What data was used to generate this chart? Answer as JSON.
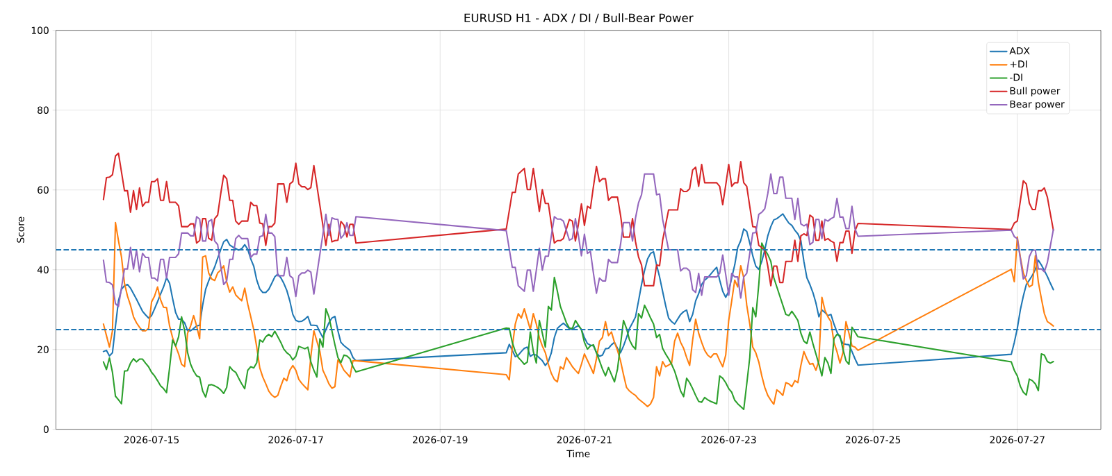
{
  "chart_data": {
    "type": "line",
    "title": "EURUSD H1 - ADX / DI / Bull-Bear Power",
    "xlabel": "Time",
    "ylabel": "Score",
    "x": [
      "2026-07-14T08:00",
      "2026-07-14T09:00",
      "2026-07-14T10:00",
      "2026-07-14T11:00",
      "2026-07-14T12:00",
      "2026-07-14T13:00",
      "2026-07-14T14:00",
      "2026-07-14T15:00",
      "2026-07-14T16:00",
      "2026-07-14T17:00",
      "2026-07-14T18:00",
      "2026-07-14T19:00",
      "2026-07-14T20:00",
      "2026-07-14T21:00",
      "2026-07-14T22:00",
      "2026-07-14T23:00",
      "2026-07-15T00:00",
      "2026-07-15T01:00",
      "2026-07-15T02:00",
      "2026-07-15T03:00",
      "2026-07-15T04:00",
      "2026-07-15T05:00",
      "2026-07-15T06:00",
      "2026-07-15T07:00",
      "2026-07-15T08:00",
      "2026-07-15T09:00",
      "2026-07-15T10:00",
      "2026-07-15T11:00",
      "2026-07-15T12:00",
      "2026-07-15T13:00",
      "2026-07-15T14:00",
      "2026-07-15T15:00",
      "2026-07-15T16:00",
      "2026-07-15T17:00",
      "2026-07-15T18:00",
      "2026-07-15T19:00",
      "2026-07-15T20:00",
      "2026-07-15T21:00",
      "2026-07-15T22:00",
      "2026-07-15T23:00",
      "2026-07-16T00:00",
      "2026-07-16T01:00",
      "2026-07-16T02:00",
      "2026-07-16T03:00",
      "2026-07-16T04:00",
      "2026-07-16T05:00",
      "2026-07-16T06:00",
      "2026-07-16T07:00",
      "2026-07-16T08:00",
      "2026-07-16T09:00",
      "2026-07-16T10:00",
      "2026-07-16T11:00",
      "2026-07-16T12:00",
      "2026-07-16T13:00",
      "2026-07-16T14:00",
      "2026-07-16T15:00",
      "2026-07-16T16:00",
      "2026-07-16T17:00",
      "2026-07-16T18:00",
      "2026-07-16T19:00",
      "2026-07-16T20:00",
      "2026-07-16T21:00",
      "2026-07-16T22:00",
      "2026-07-16T23:00",
      "2026-07-17T00:00",
      "2026-07-17T01:00",
      "2026-07-17T02:00",
      "2026-07-17T03:00",
      "2026-07-17T04:00",
      "2026-07-17T05:00",
      "2026-07-17T06:00",
      "2026-07-17T07:00",
      "2026-07-17T08:00",
      "2026-07-17T09:00",
      "2026-07-17T10:00",
      "2026-07-17T11:00",
      "2026-07-17T12:00",
      "2026-07-17T13:00",
      "2026-07-17T14:00",
      "2026-07-17T15:00",
      "2026-07-17T16:00",
      "2026-07-17T17:00",
      "2026-07-17T18:00",
      "2026-07-17T19:00",
      "2026-07-17T20:00",
      "2026-07-19T22:00",
      "2026-07-19T23:00",
      "2026-07-20T00:00",
      "2026-07-20T01:00",
      "2026-07-20T02:00",
      "2026-07-20T03:00",
      "2026-07-20T04:00",
      "2026-07-20T05:00",
      "2026-07-20T06:00",
      "2026-07-20T07:00",
      "2026-07-20T08:00",
      "2026-07-20T09:00",
      "2026-07-20T10:00",
      "2026-07-20T11:00",
      "2026-07-20T12:00",
      "2026-07-20T13:00",
      "2026-07-20T14:00",
      "2026-07-20T15:00",
      "2026-07-20T16:00",
      "2026-07-20T17:00",
      "2026-07-20T18:00",
      "2026-07-20T19:00",
      "2026-07-20T20:00",
      "2026-07-20T21:00",
      "2026-07-20T22:00",
      "2026-07-20T23:00",
      "2026-07-21T00:00",
      "2026-07-21T01:00",
      "2026-07-21T02:00",
      "2026-07-21T03:00",
      "2026-07-21T04:00",
      "2026-07-21T05:00",
      "2026-07-21T06:00",
      "2026-07-21T07:00",
      "2026-07-21T08:00",
      "2026-07-21T09:00",
      "2026-07-21T10:00",
      "2026-07-21T11:00",
      "2026-07-21T12:00",
      "2026-07-21T13:00",
      "2026-07-21T14:00",
      "2026-07-21T15:00",
      "2026-07-21T16:00",
      "2026-07-21T17:00",
      "2026-07-21T18:00",
      "2026-07-21T19:00",
      "2026-07-21T20:00",
      "2026-07-21T21:00",
      "2026-07-21T22:00",
      "2026-07-21T23:00",
      "2026-07-22T00:00",
      "2026-07-22T01:00",
      "2026-07-22T02:00",
      "2026-07-22T03:00",
      "2026-07-22T04:00",
      "2026-07-22T05:00",
      "2026-07-22T06:00",
      "2026-07-22T07:00",
      "2026-07-22T08:00",
      "2026-07-22T09:00",
      "2026-07-22T10:00",
      "2026-07-22T11:00",
      "2026-07-22T12:00",
      "2026-07-22T13:00",
      "2026-07-22T14:00",
      "2026-07-22T15:00",
      "2026-07-22T16:00",
      "2026-07-22T17:00",
      "2026-07-22T18:00",
      "2026-07-22T19:00",
      "2026-07-22T20:00",
      "2026-07-22T21:00",
      "2026-07-22T22:00",
      "2026-07-22T23:00",
      "2026-07-23T00:00",
      "2026-07-23T01:00",
      "2026-07-23T02:00",
      "2026-07-23T03:00",
      "2026-07-23T04:00",
      "2026-07-23T05:00",
      "2026-07-23T06:00",
      "2026-07-23T07:00",
      "2026-07-23T08:00",
      "2026-07-23T09:00",
      "2026-07-23T10:00",
      "2026-07-23T11:00",
      "2026-07-23T12:00",
      "2026-07-23T13:00",
      "2026-07-23T14:00",
      "2026-07-23T15:00",
      "2026-07-23T16:00",
      "2026-07-23T17:00",
      "2026-07-23T18:00",
      "2026-07-23T19:00",
      "2026-07-23T20:00",
      "2026-07-23T21:00",
      "2026-07-23T22:00",
      "2026-07-23T23:00",
      "2026-07-24T00:00",
      "2026-07-24T01:00",
      "2026-07-24T02:00",
      "2026-07-24T03:00",
      "2026-07-24T04:00",
      "2026-07-24T05:00",
      "2026-07-24T06:00",
      "2026-07-24T07:00",
      "2026-07-24T08:00",
      "2026-07-24T09:00",
      "2026-07-24T10:00",
      "2026-07-24T11:00",
      "2026-07-24T12:00",
      "2026-07-24T13:00",
      "2026-07-24T14:00",
      "2026-07-24T15:00",
      "2026-07-24T16:00",
      "2026-07-24T17:00",
      "2026-07-24T18:00",
      "2026-07-24T19:00",
      "2026-07-26T22:00",
      "2026-07-26T23:00",
      "2026-07-27T00:00",
      "2026-07-27T01:00",
      "2026-07-27T02:00",
      "2026-07-27T03:00",
      "2026-07-27T04:00",
      "2026-07-27T05:00",
      "2026-07-27T06:00",
      "2026-07-27T07:00",
      "2026-07-27T08:00",
      "2026-07-27T09:00",
      "2026-07-27T10:00",
      "2026-07-27T11:00",
      "2026-07-27T12:00"
    ],
    "series": [
      {
        "name": "ADX",
        "color": "#1f77b4",
        "values": [
          19.5,
          19.8,
          18.4,
          19.2,
          25.9,
          32.2,
          35.1,
          36.0,
          36.3,
          35.4,
          34.0,
          32.6,
          31.1,
          29.6,
          28.7,
          27.9,
          28.5,
          30.2,
          32.0,
          33.9,
          35.7,
          38.0,
          36.6,
          32.8,
          29.3,
          27.6,
          27.6,
          26.7,
          24.7,
          24.7,
          25.3,
          25.9,
          26.1,
          31.1,
          35.1,
          37.2,
          39.0,
          40.7,
          42.9,
          45.0,
          47.0,
          47.6,
          46.2,
          45.7,
          45.3,
          44.9,
          45.3,
          46.3,
          45.1,
          42.7,
          40.9,
          37.4,
          35.2,
          34.3,
          34.3,
          35.1,
          36.6,
          38.2,
          38.9,
          38.0,
          36.6,
          34.8,
          32.2,
          28.8,
          27.3,
          27.0,
          27.1,
          27.6,
          28.3,
          26.1,
          26.1,
          26.0,
          24.4,
          23.0,
          25.0,
          26.7,
          27.9,
          28.3,
          24.7,
          21.8,
          21.0,
          20.4,
          19.8,
          18.0,
          17.2,
          19.2,
          21.3,
          19.8,
          18.2,
          18.6,
          19.5,
          20.3,
          20.6,
          18.3,
          18.8,
          18.6,
          17.9,
          17.2,
          16.0,
          17.0,
          19.2,
          23.0,
          25.3,
          26.0,
          26.6,
          25.9,
          25.2,
          25.0,
          25.6,
          26.0,
          25.0,
          23.0,
          21.5,
          21.1,
          20.9,
          19.2,
          18.3,
          18.6,
          20.2,
          20.3,
          21.2,
          21.8,
          20.3,
          19.2,
          20.9,
          23.0,
          25.3,
          26.7,
          28.2,
          32.2,
          36.3,
          39.8,
          42.7,
          44.1,
          44.5,
          41.2,
          38.2,
          34.6,
          31.1,
          27.9,
          27.0,
          26.4,
          27.6,
          28.8,
          29.5,
          29.9,
          27.0,
          28.8,
          32.2,
          34.0,
          36.3,
          37.4,
          38.0,
          38.9,
          39.8,
          40.6,
          37.4,
          34.6,
          33.1,
          34.6,
          38.0,
          41.2,
          45.6,
          47.3,
          50.2,
          49.6,
          46.7,
          43.5,
          40.9,
          40.1,
          42.1,
          45.0,
          48.5,
          50.8,
          52.5,
          52.8,
          53.4,
          54.0,
          52.8,
          51.7,
          51.1,
          49.9,
          49.0,
          47.3,
          42.1,
          38.0,
          36.3,
          34.3,
          31.7,
          28.2,
          29.9,
          29.3,
          28.5,
          28.8,
          26.4,
          24.4,
          23.0,
          21.5,
          21.3,
          21.2,
          19.5,
          17.7,
          16.1,
          18.8,
          21.8,
          25.3,
          29.9,
          33.4,
          36.3,
          37.4,
          38.6,
          40.1,
          42.4,
          41.2,
          39.8,
          38.3,
          36.6,
          35.0
        ]
      },
      {
        "name": "+DI",
        "color": "#ff7f0e",
        "values": [
          26.4,
          23.5,
          20.6,
          24.7,
          51.8,
          47.3,
          43.2,
          36.6,
          33.4,
          31.1,
          28.2,
          26.7,
          25.6,
          24.7,
          24.7,
          25.3,
          31.9,
          33.4,
          35.7,
          32.5,
          30.6,
          30.5,
          25.9,
          23.0,
          20.9,
          18.9,
          16.3,
          15.7,
          24.1,
          25.9,
          28.5,
          25.9,
          22.7,
          43.2,
          43.5,
          39.2,
          37.7,
          37.3,
          39.2,
          39.9,
          41.0,
          36.9,
          34.4,
          35.7,
          33.7,
          32.9,
          32.2,
          35.4,
          31.4,
          28.2,
          25.0,
          20.6,
          15.4,
          13.1,
          11.4,
          9.6,
          8.6,
          8.0,
          8.5,
          10.8,
          12.8,
          12.2,
          14.8,
          16.0,
          14.8,
          12.5,
          11.5,
          10.7,
          9.9,
          18.3,
          24.7,
          22.1,
          19.5,
          14.8,
          13.2,
          11.4,
          10.3,
          10.7,
          17.4,
          16.3,
          14.8,
          14.0,
          13.1,
          17.2,
          17.2,
          13.7,
          12.4,
          20.6,
          26.4,
          29.0,
          27.9,
          30.2,
          27.6,
          25.0,
          29.0,
          26.4,
          23.0,
          20.9,
          19.2,
          16.3,
          14.0,
          12.5,
          11.9,
          15.7,
          15.1,
          18.0,
          16.9,
          15.7,
          14.8,
          14.0,
          16.3,
          18.9,
          17.3,
          15.7,
          14.0,
          17.7,
          22.1,
          23.0,
          27.0,
          23.5,
          24.4,
          21.8,
          19.8,
          17.2,
          13.7,
          10.5,
          9.6,
          9.0,
          8.5,
          7.6,
          7.0,
          6.4,
          5.7,
          6.4,
          8.0,
          15.7,
          13.4,
          17.0,
          15.7,
          16.1,
          16.6,
          22.1,
          24.1,
          21.8,
          20.3,
          18.0,
          16.0,
          22.4,
          27.6,
          24.1,
          21.8,
          19.8,
          18.6,
          18.0,
          18.9,
          18.9,
          17.2,
          15.7,
          18.6,
          27.3,
          32.2,
          37.4,
          35.7,
          41.0,
          38.0,
          31.1,
          26.4,
          20.6,
          19.2,
          16.9,
          13.4,
          10.5,
          8.5,
          7.3,
          6.3,
          9.9,
          9.3,
          8.5,
          11.7,
          11.4,
          10.7,
          12.2,
          11.7,
          16.0,
          19.5,
          17.7,
          16.3,
          16.5,
          14.8,
          17.2,
          33.1,
          29.9,
          28.2,
          27.0,
          21.8,
          19.5,
          16.6,
          19.2,
          27.0,
          24.1,
          20.9,
          20.6,
          19.8,
          40.1,
          37.0,
          48.2,
          43.2,
          39.2,
          37.3,
          35.7,
          36.2,
          43.5,
          36.9,
          32.8,
          29.0,
          27.0,
          26.5,
          25.9
        ]
      },
      {
        "name": "-DI",
        "color": "#2ca02c",
        "values": [
          16.9,
          15.0,
          17.9,
          14.3,
          8.3,
          7.4,
          6.4,
          14.6,
          14.7,
          16.6,
          17.7,
          16.9,
          17.6,
          17.6,
          16.6,
          15.7,
          14.3,
          13.4,
          12.2,
          10.9,
          10.2,
          9.2,
          15.4,
          22.4,
          20.9,
          23.2,
          28.2,
          24.7,
          19.2,
          16.3,
          14.6,
          13.4,
          13.1,
          9.6,
          8.1,
          11.1,
          11.2,
          10.9,
          10.5,
          9.9,
          9.0,
          10.5,
          15.7,
          14.8,
          14.3,
          12.8,
          11.4,
          10.2,
          14.8,
          15.7,
          15.4,
          16.7,
          22.4,
          21.9,
          23.2,
          23.8,
          23.2,
          24.6,
          23.2,
          21.8,
          20.1,
          19.2,
          18.6,
          17.4,
          18.3,
          20.8,
          20.5,
          20.2,
          20.6,
          16.9,
          14.8,
          13.1,
          22.7,
          20.6,
          30.2,
          28.2,
          24.7,
          21.2,
          18.0,
          16.7,
          18.6,
          18.4,
          17.7,
          15.7,
          14.4,
          25.4,
          25.3,
          21.8,
          19.5,
          18.0,
          17.2,
          16.3,
          16.9,
          24.4,
          19.5,
          16.6,
          27.3,
          24.1,
          20.6,
          30.8,
          29.9,
          38.1,
          34.6,
          30.8,
          28.8,
          26.7,
          25.4,
          25.3,
          27.3,
          26.1,
          25.0,
          21.8,
          20.1,
          20.9,
          21.2,
          19.2,
          17.2,
          15.1,
          13.4,
          15.5,
          13.7,
          11.9,
          15.1,
          21.2,
          27.3,
          25.3,
          22.4,
          20.9,
          20.1,
          29.0,
          27.9,
          31.1,
          29.6,
          27.9,
          26.4,
          23.0,
          23.8,
          20.3,
          18.9,
          17.7,
          16.3,
          14.6,
          12.2,
          9.6,
          8.2,
          12.8,
          11.7,
          10.2,
          8.5,
          7.0,
          6.8,
          8.0,
          7.4,
          7.0,
          6.7,
          6.4,
          13.4,
          12.8,
          11.7,
          10.2,
          9.3,
          7.3,
          6.4,
          5.7,
          5.0,
          11.4,
          18.0,
          30.5,
          28.2,
          36.3,
          46.7,
          45.0,
          43.8,
          42.1,
          38.0,
          35.7,
          33.4,
          31.1,
          28.8,
          28.5,
          29.6,
          28.5,
          27.3,
          24.1,
          22.1,
          21.5,
          24.4,
          21.5,
          18.9,
          16.3,
          13.4,
          18.0,
          16.6,
          14.0,
          22.7,
          23.8,
          23.5,
          20.1,
          17.2,
          16.3,
          25.6,
          24.4,
          23.2,
          16.9,
          14.8,
          13.4,
          10.8,
          9.3,
          8.6,
          12.6,
          12.2,
          11.4,
          9.7,
          18.9,
          18.6,
          17.0,
          16.6,
          17.0
        ]
      },
      {
        "name": "Bull power",
        "color": "#d62728",
        "values": [
          57.6,
          63.1,
          63.2,
          63.8,
          68.5,
          69.2,
          64.5,
          59.8,
          59.8,
          54.4,
          59.8,
          55.1,
          60.5,
          55.9,
          56.9,
          56.9,
          62.1,
          62.1,
          62.8,
          57.4,
          57.4,
          62.1,
          56.9,
          56.9,
          56.9,
          56.0,
          50.8,
          50.8,
          50.8,
          51.5,
          51.5,
          46.7,
          47.3,
          52.8,
          52.8,
          47.9,
          47.4,
          52.8,
          53.7,
          59.0,
          63.7,
          62.8,
          57.4,
          57.4,
          52.2,
          51.4,
          52.2,
          52.2,
          52.2,
          56.9,
          56.1,
          56.1,
          51.7,
          51.5,
          46.1,
          50.8,
          50.8,
          51.7,
          61.5,
          61.5,
          61.5,
          56.9,
          61.5,
          62.1,
          66.7,
          61.5,
          60.8,
          60.8,
          60.1,
          60.6,
          66.1,
          61.1,
          56.1,
          51.1,
          46.1,
          51.4,
          47.0,
          47.3,
          47.4,
          52.1,
          51.2,
          48.2,
          51.4,
          51.4,
          46.7,
          50.2,
          54.8,
          59.4,
          59.4,
          64.0,
          64.7,
          65.4,
          60.1,
          60.1,
          65.4,
          60.1,
          54.6,
          60.1,
          56.6,
          56.6,
          51.4,
          46.7,
          47.3,
          47.3,
          47.8,
          50.2,
          52.6,
          52.2,
          47.2,
          51.4,
          56.5,
          51.1,
          55.9,
          55.4,
          60.9,
          65.9,
          62.1,
          62.8,
          62.8,
          57.4,
          58.2,
          58.2,
          58.2,
          53.7,
          48.2,
          48.2,
          48.2,
          52.8,
          47.0,
          43.2,
          41.2,
          36.0,
          36.0,
          36.0,
          36.0,
          41.2,
          41.0,
          47.3,
          51.2,
          55.0,
          55.0,
          55.0,
          55.0,
          60.3,
          59.6,
          59.6,
          60.3,
          65.0,
          65.7,
          60.9,
          66.4,
          61.8,
          61.8,
          61.8,
          61.8,
          61.8,
          60.9,
          56.3,
          61.2,
          66.4,
          60.9,
          61.8,
          61.8,
          67.1,
          61.8,
          60.9,
          55.9,
          50.8,
          50.7,
          46.1,
          45.6,
          44.7,
          40.9,
          36.0,
          40.9,
          40.9,
          36.8,
          36.8,
          42.1,
          42.1,
          42.1,
          47.4,
          42.1,
          48.5,
          49.0,
          48.6,
          53.7,
          53.1,
          47.4,
          47.4,
          52.2,
          47.4,
          47.8,
          47.2,
          46.8,
          42.1,
          46.8,
          46.8,
          49.7,
          49.7,
          44.1,
          49.7,
          51.6,
          50.1,
          51.7,
          52.2,
          57.2,
          62.3,
          61.5,
          56.7,
          55.1,
          55.1,
          59.8,
          59.8,
          60.5,
          58.2,
          54.0,
          49.9
        ]
      },
      {
        "name": "Bear power",
        "color": "#9467bd",
        "values": [
          42.4,
          36.9,
          36.8,
          36.2,
          31.5,
          30.8,
          35.5,
          40.2,
          40.2,
          45.6,
          40.2,
          44.9,
          39.5,
          44.1,
          43.1,
          43.1,
          37.9,
          37.9,
          37.2,
          42.6,
          42.6,
          37.9,
          43.1,
          43.1,
          43.1,
          44.0,
          49.2,
          49.2,
          49.2,
          48.5,
          48.5,
          53.3,
          52.7,
          47.2,
          47.2,
          52.1,
          52.6,
          47.2,
          46.3,
          41.0,
          36.3,
          37.2,
          42.6,
          42.6,
          47.8,
          48.6,
          47.8,
          47.8,
          47.8,
          43.1,
          43.9,
          43.9,
          48.3,
          48.5,
          53.9,
          49.2,
          49.2,
          48.3,
          38.5,
          38.5,
          38.5,
          43.1,
          38.5,
          37.9,
          33.3,
          38.5,
          39.2,
          39.2,
          39.9,
          39.4,
          33.9,
          38.9,
          43.9,
          48.9,
          53.9,
          48.6,
          53.0,
          52.7,
          52.6,
          47.9,
          48.8,
          51.8,
          48.6,
          48.6,
          53.3,
          49.8,
          45.2,
          40.6,
          40.6,
          36.0,
          35.3,
          34.6,
          39.9,
          39.9,
          34.6,
          39.9,
          45.4,
          39.9,
          43.4,
          43.4,
          48.6,
          53.3,
          52.7,
          52.7,
          52.2,
          49.8,
          47.4,
          47.8,
          52.8,
          48.6,
          43.5,
          48.9,
          44.1,
          44.6,
          39.1,
          34.1,
          37.9,
          37.2,
          37.2,
          42.6,
          41.8,
          41.8,
          41.8,
          46.3,
          51.8,
          51.8,
          51.8,
          47.2,
          53.0,
          56.8,
          58.8,
          64.0,
          64.0,
          64.0,
          64.0,
          58.8,
          59.0,
          52.7,
          48.8,
          45.0,
          45.0,
          45.0,
          45.0,
          39.7,
          40.4,
          40.4,
          39.7,
          35.0,
          34.3,
          39.1,
          33.6,
          38.2,
          38.2,
          38.2,
          38.2,
          38.2,
          39.1,
          43.7,
          38.8,
          33.6,
          39.1,
          38.2,
          38.2,
          32.9,
          38.2,
          39.1,
          44.1,
          49.2,
          49.3,
          53.9,
          54.4,
          55.3,
          59.1,
          64.0,
          59.1,
          59.1,
          63.2,
          63.2,
          57.9,
          57.9,
          57.9,
          52.6,
          57.9,
          51.5,
          51.0,
          51.4,
          46.3,
          46.9,
          52.6,
          52.6,
          47.8,
          52.6,
          52.2,
          52.8,
          53.2,
          57.9,
          53.2,
          53.2,
          50.3,
          50.3,
          55.9,
          50.3,
          48.4,
          49.9,
          48.3,
          47.8,
          42.8,
          37.7,
          38.5,
          43.3,
          44.9,
          44.9,
          40.2,
          40.2,
          39.5,
          41.8,
          46.0,
          50.1
        ]
      }
    ],
    "xlim": [
      "2026-07-13T16:12",
      "2026-07-28T03:48"
    ],
    "ylim": [
      0,
      100
    ],
    "xticks": [
      "2026-07-15",
      "2026-07-17",
      "2026-07-19",
      "2026-07-21",
      "2026-07-23",
      "2026-07-25",
      "2026-07-27"
    ],
    "yticks": [
      0,
      20,
      40,
      60,
      80,
      100
    ],
    "ref_lines": [
      {
        "axis": "y",
        "value": 45,
        "color": "#1f77b4",
        "line_style": "dashed"
      },
      {
        "axis": "y",
        "value": 25,
        "color": "#1f77b4",
        "line_style": "dashed"
      }
    ],
    "grid": true,
    "legend": "top right"
  }
}
